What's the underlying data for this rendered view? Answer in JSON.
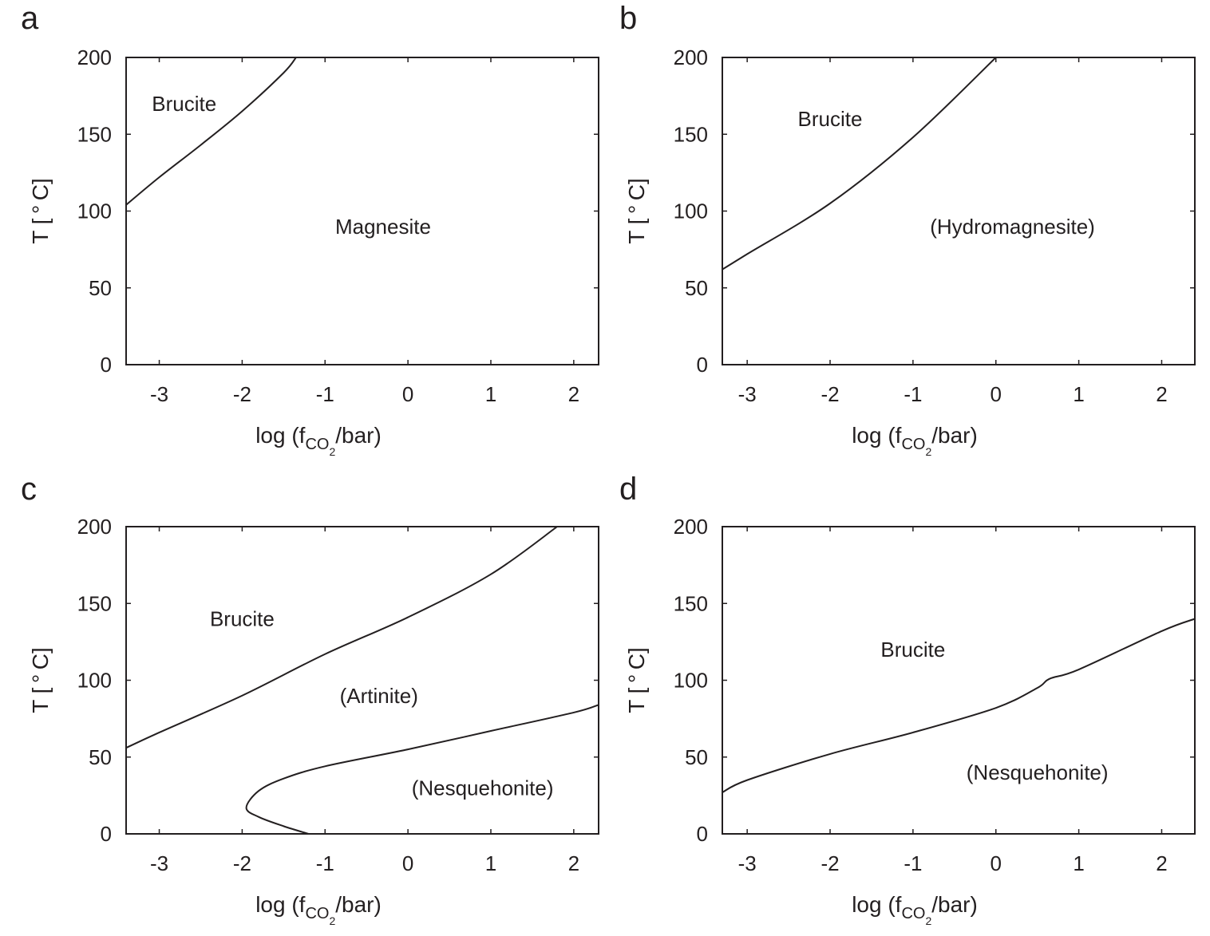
{
  "figure": {
    "panels": [
      "a",
      "b",
      "c",
      "d"
    ]
  },
  "chart_data": [
    {
      "panel": "a",
      "type": "line",
      "title": "",
      "xlabel": "log (f_CO2/bar)",
      "ylabel": "T [°C]",
      "xlim": [
        -3.4,
        2.3
      ],
      "ylim": [
        0,
        200
      ],
      "xticks": [
        -3,
        -2,
        -1,
        0,
        1,
        2
      ],
      "yticks": [
        0,
        50,
        100,
        150,
        200
      ],
      "grid": false,
      "series": [
        {
          "name": "Brucite–Magnesite boundary",
          "x": [
            -3.4,
            -3.0,
            -2.5,
            -2.0,
            -1.5,
            -1.35
          ],
          "y": [
            104,
            122,
            143,
            165,
            190,
            200
          ]
        }
      ],
      "annotations": [
        {
          "text": "Brucite",
          "x": -2.7,
          "y": 170
        },
        {
          "text": "Magnesite",
          "x": -0.3,
          "y": 90
        }
      ]
    },
    {
      "panel": "b",
      "type": "line",
      "title": "",
      "xlabel": "log (f_CO2/bar)",
      "ylabel": "T [°C]",
      "xlim": [
        -3.3,
        2.4
      ],
      "ylim": [
        0,
        200
      ],
      "xticks": [
        -3,
        -2,
        -1,
        0,
        1,
        2
      ],
      "yticks": [
        0,
        50,
        100,
        150,
        200
      ],
      "grid": false,
      "series": [
        {
          "name": "Brucite–Hydromagnesite boundary",
          "x": [
            -3.3,
            -3.0,
            -2.0,
            -1.0,
            0.0
          ],
          "y": [
            62,
            72,
            105,
            148,
            200
          ]
        }
      ],
      "annotations": [
        {
          "text": "Brucite",
          "x": -2.0,
          "y": 160
        },
        {
          "text": "(Hydromagnesite)",
          "x": 0.2,
          "y": 90
        }
      ]
    },
    {
      "panel": "c",
      "type": "line",
      "title": "",
      "xlabel": "log (f_CO2/bar)",
      "ylabel": "T [°C]",
      "xlim": [
        -3.4,
        2.3
      ],
      "ylim": [
        0,
        200
      ],
      "xticks": [
        -3,
        -2,
        -1,
        0,
        1,
        2
      ],
      "yticks": [
        0,
        50,
        100,
        150,
        200
      ],
      "grid": false,
      "series": [
        {
          "name": "Brucite–Artinite boundary",
          "x": [
            -3.4,
            -3.0,
            -2.0,
            -1.0,
            0.0,
            1.0,
            1.8
          ],
          "y": [
            56,
            66,
            90,
            117,
            141,
            169,
            200
          ]
        },
        {
          "name": "Artinite–Nesquehonite boundary",
          "x": [
            -1.2,
            -1.5,
            -1.8,
            -1.95,
            -1.8,
            -1.5,
            -1.0,
            0.0,
            1.0,
            2.0,
            2.3
          ],
          "y": [
            0,
            5,
            11,
            17,
            28,
            36,
            44,
            55,
            67,
            79,
            84
          ]
        }
      ],
      "annotations": [
        {
          "text": "Brucite",
          "x": -2.0,
          "y": 140
        },
        {
          "text": "(Artinite)",
          "x": -0.35,
          "y": 90
        },
        {
          "text": "(Nesquehonite)",
          "x": 0.9,
          "y": 30
        }
      ]
    },
    {
      "panel": "d",
      "type": "line",
      "title": "",
      "xlabel": "log (f_CO2/bar)",
      "ylabel": "T [°C]",
      "xlim": [
        -3.3,
        2.4
      ],
      "ylim": [
        0,
        200
      ],
      "xticks": [
        -3,
        -2,
        -1,
        0,
        1,
        2
      ],
      "yticks": [
        0,
        50,
        100,
        150,
        200
      ],
      "grid": false,
      "series": [
        {
          "name": "Brucite–Nesquehonite boundary",
          "x": [
            -3.3,
            -3.0,
            -2.0,
            -1.0,
            0.0,
            0.5,
            0.65,
            1.0,
            2.0,
            2.4
          ],
          "y": [
            27,
            35,
            52,
            66,
            82,
            95,
            101,
            107,
            132,
            140
          ]
        }
      ],
      "annotations": [
        {
          "text": "Brucite",
          "x": -1.0,
          "y": 120
        },
        {
          "text": "(Nesquehonite)",
          "x": 0.5,
          "y": 40
        }
      ]
    }
  ]
}
